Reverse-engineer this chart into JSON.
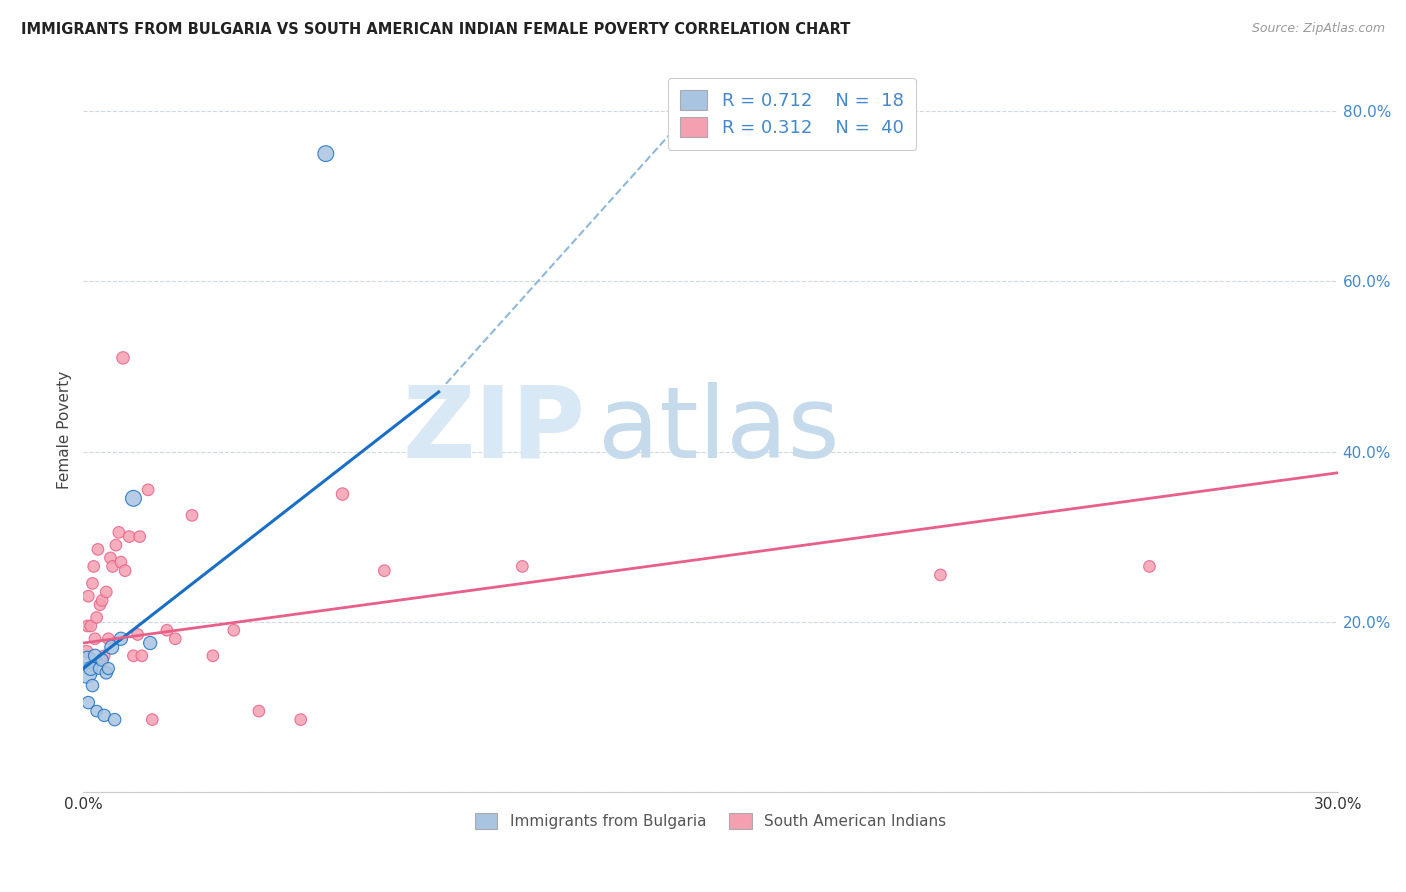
{
  "title": "IMMIGRANTS FROM BULGARIA VS SOUTH AMERICAN INDIAN FEMALE POVERTY CORRELATION CHART",
  "source": "Source: ZipAtlas.com",
  "ylabel": "Female Poverty",
  "legend_label1": "Immigrants from Bulgaria",
  "legend_label2": "South American Indians",
  "R1": "0.712",
  "N1": "18",
  "R2": "0.312",
  "N2": "40",
  "xlim": [
    0.0,
    0.3
  ],
  "ylim": [
    0.0,
    0.85
  ],
  "xticks": [
    0.0,
    0.05,
    0.1,
    0.15,
    0.2,
    0.25,
    0.3
  ],
  "yticks_right": [
    0.0,
    0.2,
    0.4,
    0.6,
    0.8
  ],
  "color_bulgaria": "#a8c4e0",
  "color_pink": "#f4a0b0",
  "color_blue_line": "#1a6fc4",
  "color_pink_line": "#e8608a",
  "color_dashed": "#90b8d8",
  "bulgaria_x": [
    0.0008,
    0.001,
    0.0012,
    0.0018,
    0.0022,
    0.0028,
    0.0032,
    0.0038,
    0.0045,
    0.005,
    0.0055,
    0.006,
    0.0068,
    0.0075,
    0.009,
    0.012,
    0.016,
    0.058
  ],
  "bulgaria_y": [
    0.14,
    0.155,
    0.105,
    0.145,
    0.125,
    0.16,
    0.095,
    0.145,
    0.155,
    0.09,
    0.14,
    0.145,
    0.17,
    0.085,
    0.18,
    0.345,
    0.175,
    0.75
  ],
  "bulgaria_sizes": [
    220,
    160,
    80,
    100,
    80,
    90,
    70,
    70,
    80,
    80,
    80,
    75,
    100,
    80,
    90,
    130,
    90,
    130
  ],
  "sa_x": [
    0.0008,
    0.001,
    0.0012,
    0.0018,
    0.0022,
    0.0025,
    0.0028,
    0.0032,
    0.0035,
    0.004,
    0.0045,
    0.005,
    0.0055,
    0.006,
    0.0065,
    0.007,
    0.0078,
    0.0085,
    0.009,
    0.0095,
    0.01,
    0.011,
    0.012,
    0.013,
    0.0135,
    0.014,
    0.0155,
    0.0165,
    0.02,
    0.022,
    0.026,
    0.031,
    0.036,
    0.042,
    0.052,
    0.062,
    0.072,
    0.105,
    0.205,
    0.255
  ],
  "sa_y": [
    0.165,
    0.195,
    0.23,
    0.195,
    0.245,
    0.265,
    0.18,
    0.205,
    0.285,
    0.22,
    0.225,
    0.16,
    0.235,
    0.18,
    0.275,
    0.265,
    0.29,
    0.305,
    0.27,
    0.51,
    0.26,
    0.3,
    0.16,
    0.185,
    0.3,
    0.16,
    0.355,
    0.085,
    0.19,
    0.18,
    0.325,
    0.16,
    0.19,
    0.095,
    0.085,
    0.35,
    0.26,
    0.265,
    0.255,
    0.265
  ],
  "sa_sizes": [
    80,
    70,
    70,
    70,
    70,
    70,
    70,
    70,
    70,
    70,
    70,
    70,
    70,
    70,
    70,
    70,
    70,
    70,
    70,
    80,
    70,
    70,
    70,
    70,
    70,
    70,
    70,
    70,
    70,
    70,
    70,
    70,
    70,
    70,
    70,
    80,
    70,
    70,
    70,
    70
  ],
  "blue_line_x": [
    0.0,
    0.085
  ],
  "blue_line_y": [
    0.145,
    0.47
  ],
  "dash_line_x": [
    0.085,
    0.148
  ],
  "dash_line_y": [
    0.47,
    0.815
  ],
  "pink_line_x": [
    0.0,
    0.3
  ],
  "pink_line_y": [
    0.175,
    0.375
  ]
}
